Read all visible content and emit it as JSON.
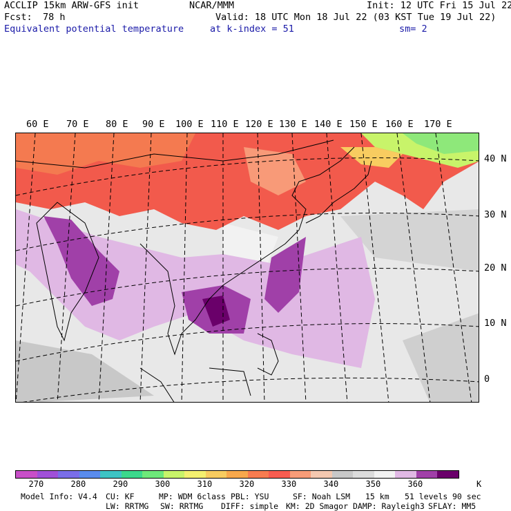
{
  "header": {
    "model_line": "ACCLIP 15km ARW-GFS init",
    "org": "NCAR/MMM",
    "init": "Init: 12 UTC Fri 15 Jul 22",
    "fcst_label": "Fcst:",
    "fcst_value": "78 h",
    "valid": "Valid: 18 UTC Mon 18 Jul 22 (03 KST Tue 19 Jul 22)",
    "field_name": "Equivalent potential temperature",
    "level": "at k-index =  51",
    "smoothing": "sm= 2"
  },
  "map": {
    "longitude_labels": [
      "60 E",
      "70 E",
      "80 E",
      "90 E",
      "100 E",
      "110 E",
      "120 E",
      "130 E",
      "140 E",
      "150 E",
      "160 E",
      "170 E"
    ],
    "latitude_labels": [
      "40 N",
      "30 N",
      "20 N",
      "10 N",
      "0"
    ]
  },
  "colorbar": {
    "colors": [
      "#c84fc8",
      "#a050d8",
      "#7a6ee8",
      "#5a8cec",
      "#3ec4c4",
      "#3cd88c",
      "#6ee87a",
      "#c8f46a",
      "#f4f070",
      "#f8cc60",
      "#f8a84c",
      "#f87c50",
      "#f85c50",
      "#f89c78",
      "#f4c8b0",
      "#c8c8c8",
      "#dcdcdc",
      "#f2f2f2",
      "#e0b8e4",
      "#a040a8",
      "#6a006a"
    ],
    "tick_labels": [
      "270",
      "280",
      "290",
      "300",
      "310",
      "320",
      "330",
      "340",
      "350",
      "360"
    ],
    "unit": "K"
  },
  "footer": {
    "row1": {
      "model_info": "Model Info: V4.4",
      "cu": "CU: KF",
      "mp": "MP: WDM 6class",
      "pbl": "PBL: YSU",
      "sf": "SF: Noah LSM",
      "res": "15 km",
      "levels": "51 levels",
      "dt": "90 sec"
    },
    "row2": {
      "lw": "LW: RRTMG",
      "sw": "SW: RRTMG",
      "diff": "DIFF: simple",
      "km": "KM: 2D Smagor",
      "damp": "DAMP: Rayleigh3",
      "sflay": "SFLAY: MM5"
    }
  }
}
